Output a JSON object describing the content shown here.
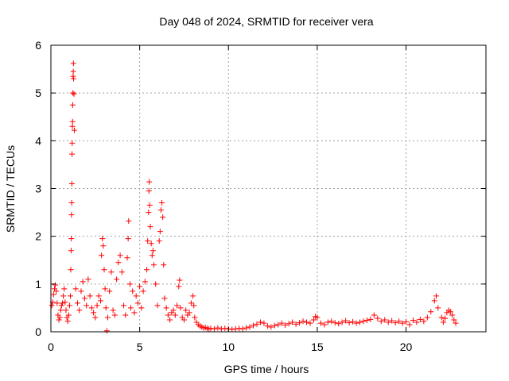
{
  "chart_data": {
    "type": "scatter",
    "title": "Day 048 of 2024, SRMTID for receiver vera",
    "xlabel": "GPS time / hours",
    "ylabel": "SRMTID / TECUs",
    "xlim": [
      0,
      24.5
    ],
    "ylim": [
      0,
      6
    ],
    "x_ticks": [
      0,
      5,
      10,
      15,
      20
    ],
    "y_ticks": [
      0,
      1,
      2,
      3,
      4,
      5,
      6
    ],
    "grid": true,
    "legend": "none",
    "series": [
      {
        "name": "SRMTID",
        "color": "#ff0000",
        "marker": "plus",
        "points": [
          [
            0.05,
            0.55
          ],
          [
            0.1,
            0.62
          ],
          [
            0.15,
            0.78
          ],
          [
            0.2,
            0.9
          ],
          [
            0.25,
            0.98
          ],
          [
            0.3,
            0.85
          ],
          [
            0.35,
            0.6
          ],
          [
            0.4,
            0.35
          ],
          [
            0.45,
            0.25
          ],
          [
            0.5,
            0.3
          ],
          [
            0.55,
            0.45
          ],
          [
            0.6,
            0.55
          ],
          [
            0.65,
            0.6
          ],
          [
            0.7,
            0.75
          ],
          [
            0.75,
            0.9
          ],
          [
            0.8,
            0.62
          ],
          [
            0.85,
            0.45
          ],
          [
            0.9,
            0.3
          ],
          [
            0.95,
            0.22
          ],
          [
            1.0,
            0.35
          ],
          [
            1.05,
            0.55
          ],
          [
            1.1,
            0.75
          ],
          [
            1.12,
            1.3
          ],
          [
            1.14,
            1.7
          ],
          [
            1.15,
            1.95
          ],
          [
            1.16,
            2.45
          ],
          [
            1.17,
            2.7
          ],
          [
            1.18,
            3.1
          ],
          [
            1.19,
            3.72
          ],
          [
            1.2,
            3.95
          ],
          [
            1.21,
            4.3
          ],
          [
            1.22,
            4.4
          ],
          [
            1.23,
            4.75
          ],
          [
            1.24,
            5.0
          ],
          [
            1.25,
            5.35
          ],
          [
            1.26,
            5.45
          ],
          [
            1.27,
            5.62
          ],
          [
            1.28,
            5.3
          ],
          [
            1.3,
            4.98
          ],
          [
            1.32,
            4.22
          ],
          [
            1.4,
            0.9
          ],
          [
            1.5,
            0.6
          ],
          [
            1.6,
            0.45
          ],
          [
            1.7,
            0.85
          ],
          [
            1.8,
            1.05
          ],
          [
            1.9,
            0.7
          ],
          [
            2.0,
            0.55
          ],
          [
            2.1,
            1.1
          ],
          [
            2.2,
            0.75
          ],
          [
            2.3,
            0.5
          ],
          [
            2.4,
            0.4
          ],
          [
            2.5,
            0.3
          ],
          [
            2.6,
            0.55
          ],
          [
            2.7,
            0.75
          ],
          [
            2.8,
            0.65
          ],
          [
            2.85,
            1.6
          ],
          [
            2.9,
            1.95
          ],
          [
            2.95,
            1.8
          ],
          [
            3.0,
            1.3
          ],
          [
            3.05,
            0.9
          ],
          [
            3.1,
            0.5
          ],
          [
            3.15,
            0.02
          ],
          [
            3.2,
            0.3
          ],
          [
            3.3,
            0.85
          ],
          [
            3.4,
            1.25
          ],
          [
            3.5,
            0.45
          ],
          [
            3.6,
            0.35
          ],
          [
            3.7,
            1.1
          ],
          [
            3.8,
            1.45
          ],
          [
            3.9,
            1.6
          ],
          [
            4.0,
            1.25
          ],
          [
            4.1,
            0.55
          ],
          [
            4.2,
            0.35
          ],
          [
            4.3,
            1.55
          ],
          [
            4.35,
            1.95
          ],
          [
            4.38,
            2.32
          ],
          [
            4.45,
            1.0
          ],
          [
            4.5,
            0.5
          ],
          [
            4.6,
            0.85
          ],
          [
            4.7,
            0.4
          ],
          [
            4.8,
            0.75
          ],
          [
            4.9,
            0.6
          ],
          [
            5.0,
            0.95
          ],
          [
            5.1,
            0.5
          ],
          [
            5.2,
            0.85
          ],
          [
            5.3,
            1.05
          ],
          [
            5.4,
            1.3
          ],
          [
            5.45,
            1.9
          ],
          [
            5.5,
            2.5
          ],
          [
            5.52,
            2.95
          ],
          [
            5.54,
            3.14
          ],
          [
            5.56,
            2.65
          ],
          [
            5.6,
            2.2
          ],
          [
            5.65,
            1.85
          ],
          [
            5.7,
            1.6
          ],
          [
            5.75,
            1.7
          ],
          [
            5.8,
            1.4
          ],
          [
            5.9,
            1.0
          ],
          [
            6.0,
            0.55
          ],
          [
            6.1,
            1.9
          ],
          [
            6.15,
            2.1
          ],
          [
            6.2,
            2.55
          ],
          [
            6.25,
            2.7
          ],
          [
            6.3,
            2.4
          ],
          [
            6.35,
            1.4
          ],
          [
            6.4,
            0.7
          ],
          [
            6.5,
            0.5
          ],
          [
            6.6,
            0.35
          ],
          [
            6.7,
            0.25
          ],
          [
            6.8,
            0.4
          ],
          [
            6.9,
            0.45
          ],
          [
            7.0,
            0.35
          ],
          [
            7.1,
            0.55
          ],
          [
            7.2,
            0.95
          ],
          [
            7.25,
            1.08
          ],
          [
            7.3,
            0.5
          ],
          [
            7.4,
            0.3
          ],
          [
            7.5,
            0.25
          ],
          [
            7.6,
            0.45
          ],
          [
            7.7,
            0.35
          ],
          [
            7.8,
            0.4
          ],
          [
            7.9,
            0.6
          ],
          [
            8.0,
            0.75
          ],
          [
            8.05,
            0.55
          ],
          [
            8.1,
            0.3
          ],
          [
            8.2,
            0.2
          ],
          [
            8.3,
            0.15
          ],
          [
            8.4,
            0.12
          ],
          [
            8.5,
            0.1
          ],
          [
            8.6,
            0.08
          ],
          [
            8.7,
            0.09
          ],
          [
            8.8,
            0.07
          ],
          [
            8.9,
            0.06
          ],
          [
            9.0,
            0.07
          ],
          [
            9.2,
            0.06
          ],
          [
            9.4,
            0.08
          ],
          [
            9.6,
            0.06
          ],
          [
            9.8,
            0.07
          ],
          [
            10.0,
            0.06
          ],
          [
            10.2,
            0.05
          ],
          [
            10.4,
            0.06
          ],
          [
            10.6,
            0.07
          ],
          [
            10.8,
            0.06
          ],
          [
            11.0,
            0.08
          ],
          [
            11.2,
            0.1
          ],
          [
            11.4,
            0.13
          ],
          [
            11.6,
            0.16
          ],
          [
            11.8,
            0.2
          ],
          [
            12.0,
            0.18
          ],
          [
            12.2,
            0.12
          ],
          [
            12.4,
            0.1
          ],
          [
            12.6,
            0.13
          ],
          [
            12.8,
            0.15
          ],
          [
            13.0,
            0.18
          ],
          [
            13.2,
            0.14
          ],
          [
            13.4,
            0.17
          ],
          [
            13.6,
            0.2
          ],
          [
            13.8,
            0.16
          ],
          [
            14.0,
            0.19
          ],
          [
            14.2,
            0.22
          ],
          [
            14.4,
            0.2
          ],
          [
            14.6,
            0.18
          ],
          [
            14.8,
            0.25
          ],
          [
            14.9,
            0.32
          ],
          [
            15.0,
            0.3
          ],
          [
            15.2,
            0.18
          ],
          [
            15.4,
            0.15
          ],
          [
            15.6,
            0.2
          ],
          [
            15.8,
            0.22
          ],
          [
            16.0,
            0.19
          ],
          [
            16.2,
            0.17
          ],
          [
            16.4,
            0.2
          ],
          [
            16.6,
            0.23
          ],
          [
            16.8,
            0.19
          ],
          [
            17.0,
            0.21
          ],
          [
            17.2,
            0.18
          ],
          [
            17.4,
            0.2
          ],
          [
            17.6,
            0.22
          ],
          [
            17.8,
            0.24
          ],
          [
            18.0,
            0.26
          ],
          [
            18.2,
            0.35
          ],
          [
            18.4,
            0.28
          ],
          [
            18.6,
            0.22
          ],
          [
            18.8,
            0.25
          ],
          [
            19.0,
            0.2
          ],
          [
            19.2,
            0.23
          ],
          [
            19.4,
            0.19
          ],
          [
            19.6,
            0.22
          ],
          [
            19.8,
            0.18
          ],
          [
            20.0,
            0.21
          ],
          [
            20.2,
            0.15
          ],
          [
            20.4,
            0.24
          ],
          [
            20.6,
            0.2
          ],
          [
            20.8,
            0.26
          ],
          [
            21.0,
            0.22
          ],
          [
            21.2,
            0.3
          ],
          [
            21.4,
            0.42
          ],
          [
            21.6,
            0.65
          ],
          [
            21.7,
            0.75
          ],
          [
            21.8,
            0.5
          ],
          [
            22.0,
            0.3
          ],
          [
            22.1,
            0.2
          ],
          [
            22.2,
            0.28
          ],
          [
            22.3,
            0.4
          ],
          [
            22.4,
            0.45
          ],
          [
            22.5,
            0.42
          ],
          [
            22.6,
            0.35
          ],
          [
            22.7,
            0.25
          ],
          [
            22.8,
            0.18
          ]
        ]
      }
    ]
  }
}
